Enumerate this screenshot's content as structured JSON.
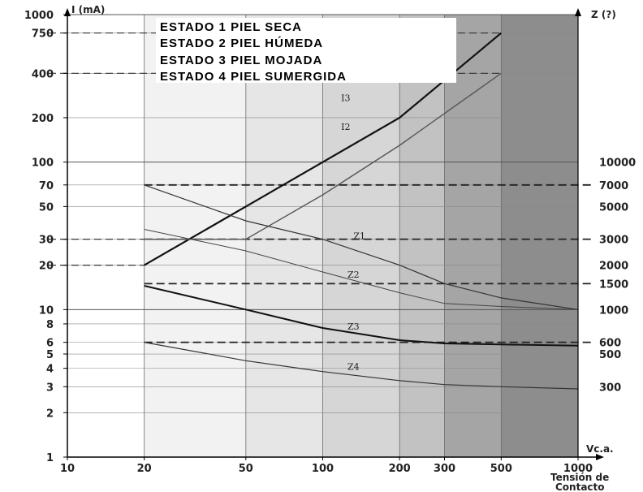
{
  "chart_data": {
    "type": "line",
    "title": "",
    "x_scale": "log",
    "y_left_scale": "log",
    "y_right_scale": "log",
    "xlim": [
      10,
      1000
    ],
    "ylim_left": [
      1,
      1000
    ],
    "ylim_right": [
      100,
      100000
    ],
    "x_ticks": [
      10,
      20,
      50,
      100,
      200,
      300,
      500,
      1000
    ],
    "x_tick_labels": [
      "10",
      "20",
      "50",
      "100",
      "200",
      "300",
      "500",
      "1000"
    ],
    "y_left_ticks": [
      1,
      2,
      3,
      4,
      5,
      6,
      8,
      10,
      20,
      30,
      50,
      70,
      100,
      200,
      400,
      750,
      1000
    ],
    "y_left_tick_labels": [
      "1",
      "2",
      "3",
      "4",
      "5",
      "6",
      "8",
      "10",
      "20",
      "30",
      "50",
      "70",
      "100",
      "200",
      "400",
      "750",
      "1000"
    ],
    "y_right_ticks": [
      300,
      500,
      600,
      1000,
      1500,
      2000,
      3000,
      5000,
      7000,
      10000
    ],
    "y_right_tick_labels": [
      "300",
      "500",
      "600",
      "1000",
      "1500",
      "2000",
      "3000",
      "5000",
      "7000",
      "10000"
    ],
    "y_left_label": "I (mA)",
    "y_right_label": "Z (?)",
    "x_unit_label": "Vc.a.",
    "x_label_lines": [
      "Tensión de",
      "Contacto"
    ],
    "grid": true,
    "legend_position": "top",
    "legend": [
      {
        "label": "ESTADO 1  PIEL SECA",
        "color": "#444444"
      },
      {
        "label": "ESTADO 2  PIEL HÚMEDA",
        "color": "#8a8a8a"
      },
      {
        "label": "ESTADO 3  PIEL MOJADA",
        "color": "#111111"
      },
      {
        "label": "ESTADO 4  PIEL SUMERGIDA",
        "color": "#777777"
      }
    ],
    "reference_lines_left": [
      {
        "y": 750,
        "x_end": 500
      },
      {
        "y": 400,
        "x_end": 500
      },
      {
        "y": 30,
        "x_end": 50
      },
      {
        "y": 20,
        "x_end": 20
      }
    ],
    "reference_lines_right": [
      {
        "z": 7000,
        "x_start": 20
      },
      {
        "z": 3000,
        "x_start": 20
      },
      {
        "z": 1500,
        "x_start": 20
      },
      {
        "z": 600,
        "x_start": 20
      }
    ],
    "series": [
      {
        "name": "I3",
        "axis": "left",
        "x": [
          20,
          50,
          100,
          200,
          500
        ],
        "values": [
          20,
          50,
          100,
          200,
          750
        ]
      },
      {
        "name": "I2",
        "axis": "left",
        "x": [
          20,
          50,
          100,
          200,
          500
        ],
        "values": [
          30,
          30,
          60,
          130,
          400
        ]
      },
      {
        "name": "Z1",
        "axis": "right",
        "x": [
          20,
          50,
          100,
          200,
          300,
          500,
          1000
        ],
        "values": [
          7000,
          4000,
          3000,
          2000,
          1500,
          1200,
          1000
        ]
      },
      {
        "name": "Z2",
        "axis": "right",
        "x": [
          20,
          50,
          100,
          200,
          300,
          500,
          1000
        ],
        "values": [
          3500,
          2500,
          1800,
          1300,
          1100,
          1050,
          1000
        ]
      },
      {
        "name": "Z3",
        "axis": "right",
        "x": [
          20,
          50,
          100,
          200,
          300,
          500,
          1000
        ],
        "values": [
          1450,
          1000,
          750,
          620,
          590,
          580,
          570
        ]
      },
      {
        "name": "Z4",
        "axis": "right",
        "x": [
          20,
          50,
          100,
          200,
          300,
          500,
          1000
        ],
        "values": [
          600,
          450,
          380,
          330,
          310,
          300,
          290
        ]
      }
    ],
    "curve_labels": [
      {
        "text": "I3",
        "x": 118,
        "y": 260,
        "axis": "left"
      },
      {
        "text": "I2",
        "x": 118,
        "y": 165,
        "axis": "left"
      },
      {
        "text": "Z1",
        "x": 132,
        "y": 3000,
        "axis": "right"
      },
      {
        "text": "Z2",
        "x": 125,
        "y": 1650,
        "axis": "right"
      },
      {
        "text": "Z3",
        "x": 125,
        "y": 730,
        "axis": "right"
      },
      {
        "text": "Z4",
        "x": 125,
        "y": 390,
        "axis": "right"
      }
    ]
  }
}
